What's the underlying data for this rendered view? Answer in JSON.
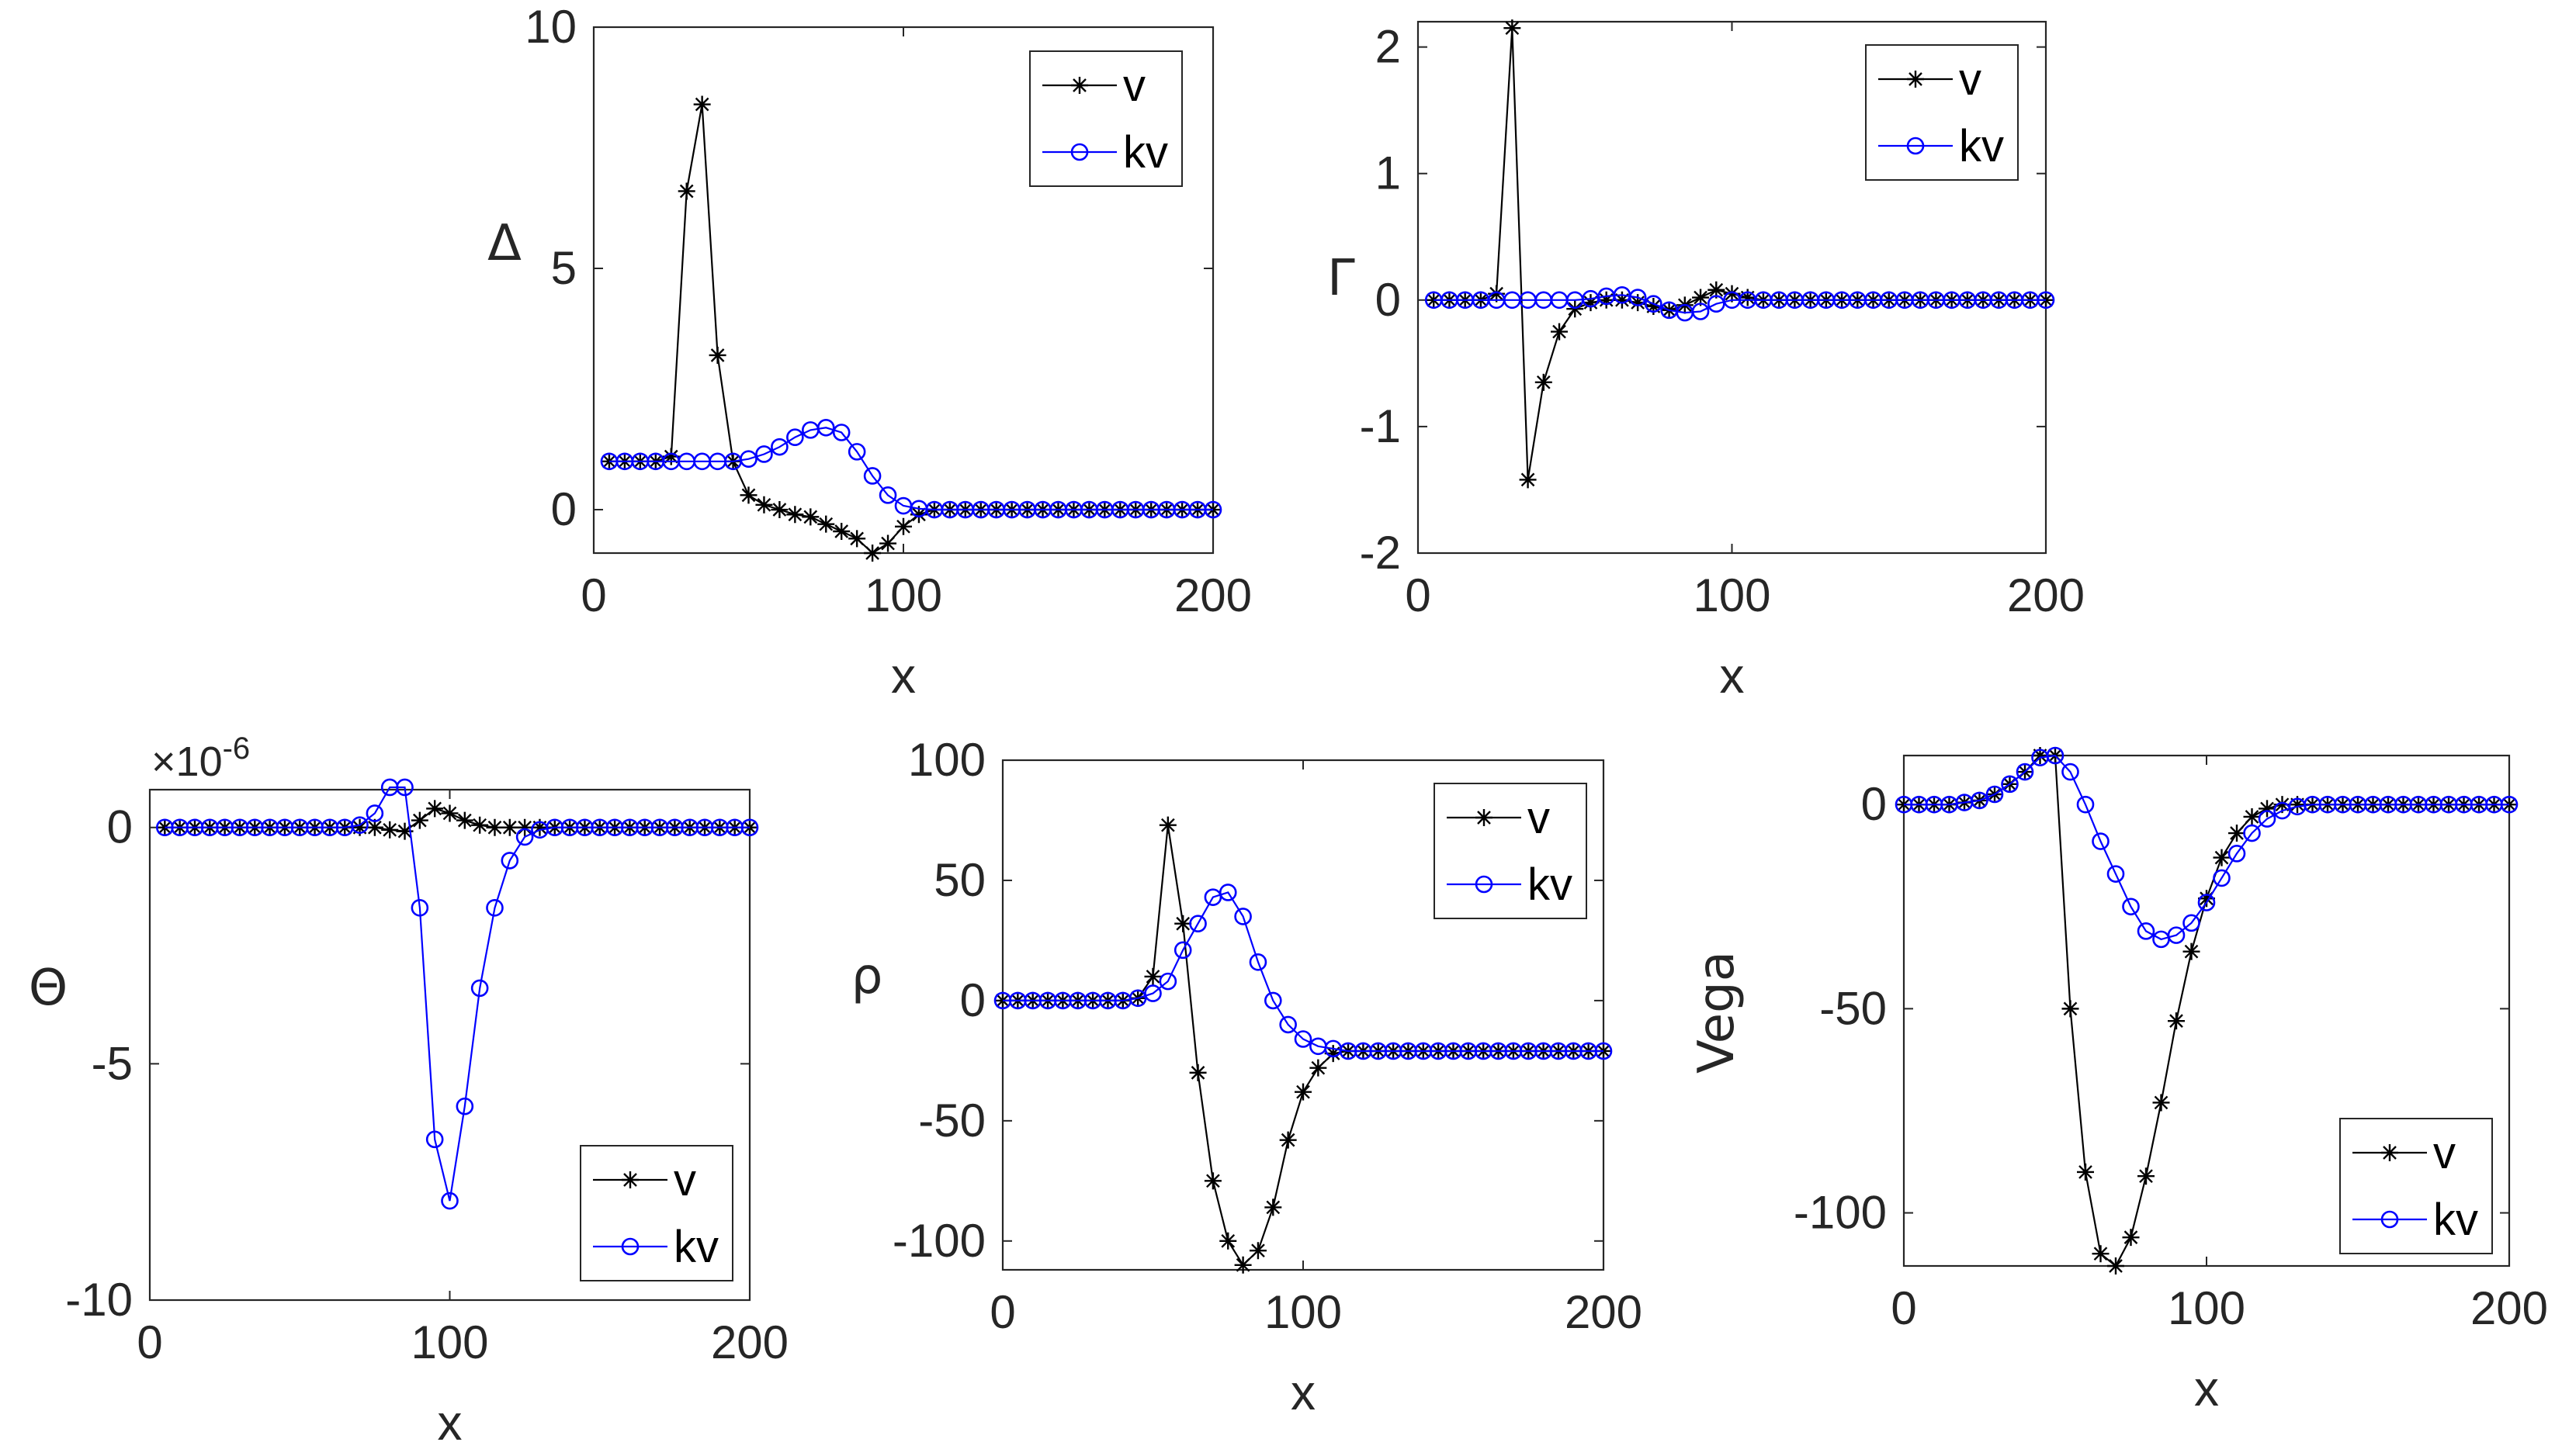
{
  "figure": {
    "description_free": true
  },
  "colors": {
    "v": "#000000",
    "kv": "#0000ff",
    "axis": "#262626"
  },
  "chart_data": [
    {
      "id": "delta",
      "type": "line",
      "ylabel": "Δ",
      "xlabel": "x",
      "xlim": [
        0,
        200
      ],
      "ylim": [
        -0.9,
        10
      ],
      "xticks": [
        0,
        100,
        200
      ],
      "yticks": [
        0,
        5,
        10
      ],
      "xtick_labels": [
        "0",
        "100",
        "200"
      ],
      "ytick_labels": [
        "0",
        "5",
        "10"
      ],
      "multiplier": "",
      "legend": "top-right",
      "series": [
        {
          "name": "v",
          "marker": "star",
          "x": [
            5,
            10,
            15,
            20,
            25,
            30,
            35,
            40,
            45,
            50,
            55,
            60,
            65,
            70,
            75,
            80,
            85,
            90,
            95,
            100,
            105,
            110,
            115,
            120,
            125,
            130,
            135,
            140,
            145,
            150,
            155,
            160,
            165,
            170,
            175,
            180,
            185,
            190,
            195,
            200
          ],
          "y": [
            1,
            1,
            1,
            1,
            1.1,
            6.6,
            8.4,
            3.2,
            1,
            0.3,
            0.1,
            0,
            -0.1,
            -0.15,
            -0.3,
            -0.45,
            -0.6,
            -0.9,
            -0.7,
            -0.35,
            -0.1,
            0,
            0,
            0,
            0,
            0,
            0,
            0,
            0,
            0,
            0,
            0,
            0,
            0,
            0,
            0,
            0,
            0,
            0,
            0
          ]
        },
        {
          "name": "kv",
          "marker": "circle",
          "x": [
            5,
            10,
            15,
            20,
            25,
            30,
            35,
            40,
            45,
            50,
            55,
            60,
            65,
            70,
            75,
            80,
            85,
            90,
            95,
            100,
            105,
            110,
            115,
            120,
            125,
            130,
            135,
            140,
            145,
            150,
            155,
            160,
            165,
            170,
            175,
            180,
            185,
            190,
            195,
            200
          ],
          "y": [
            1,
            1,
            1,
            1,
            1,
            1,
            1,
            1,
            1,
            1.05,
            1.15,
            1.3,
            1.5,
            1.65,
            1.7,
            1.6,
            1.2,
            0.7,
            0.3,
            0.08,
            0.02,
            0,
            0,
            0,
            0,
            0,
            0,
            0,
            0,
            0,
            0,
            0,
            0,
            0,
            0,
            0,
            0,
            0,
            0,
            0
          ]
        }
      ]
    },
    {
      "id": "gamma",
      "type": "line",
      "ylabel": "Γ",
      "xlabel": "x",
      "xlim": [
        0,
        200
      ],
      "ylim": [
        -2,
        2.2
      ],
      "xticks": [
        0,
        100,
        200
      ],
      "yticks": [
        -2,
        -1,
        0,
        1,
        2
      ],
      "xtick_labels": [
        "0",
        "100",
        "200"
      ],
      "ytick_labels": [
        "-2",
        "-1",
        "0",
        "1",
        "2"
      ],
      "multiplier": "",
      "legend": "top-right",
      "series": [
        {
          "name": "v",
          "marker": "star",
          "x": [
            5,
            10,
            15,
            20,
            25,
            30,
            35,
            40,
            45,
            50,
            55,
            60,
            65,
            70,
            75,
            80,
            85,
            90,
            95,
            100,
            105,
            110,
            115,
            120,
            125,
            130,
            135,
            140,
            145,
            150,
            155,
            160,
            165,
            170,
            175,
            180,
            185,
            190,
            195,
            200
          ],
          "y": [
            0,
            0,
            0,
            0,
            0.05,
            2.15,
            -1.42,
            -0.65,
            -0.25,
            -0.07,
            -0.02,
            0,
            0,
            -0.02,
            -0.05,
            -0.08,
            -0.04,
            0.02,
            0.08,
            0.05,
            0.02,
            0,
            0,
            0,
            0,
            0,
            0,
            0,
            0,
            0,
            0,
            0,
            0,
            0,
            0,
            0,
            0,
            0,
            0,
            0
          ]
        },
        {
          "name": "kv",
          "marker": "circle",
          "x": [
            5,
            10,
            15,
            20,
            25,
            30,
            35,
            40,
            45,
            50,
            55,
            60,
            65,
            70,
            75,
            80,
            85,
            90,
            95,
            100,
            105,
            110,
            115,
            120,
            125,
            130,
            135,
            140,
            145,
            150,
            155,
            160,
            165,
            170,
            175,
            180,
            185,
            190,
            195,
            200
          ],
          "y": [
            0,
            0,
            0,
            0,
            0,
            0,
            0,
            0,
            0,
            0,
            0.01,
            0.03,
            0.04,
            0.02,
            -0.03,
            -0.08,
            -0.1,
            -0.09,
            -0.03,
            0,
            0,
            0,
            0,
            0,
            0,
            0,
            0,
            0,
            0,
            0,
            0,
            0,
            0,
            0,
            0,
            0,
            0,
            0,
            0,
            0
          ]
        }
      ]
    },
    {
      "id": "theta",
      "type": "line",
      "ylabel": "Θ",
      "xlabel": "x",
      "xlim": [
        0,
        200
      ],
      "ylim": [
        -10,
        0.8
      ],
      "xticks": [
        0,
        100,
        200
      ],
      "yticks": [
        -10,
        -5,
        0
      ],
      "xtick_labels": [
        "0",
        "100",
        "200"
      ],
      "ytick_labels": [
        "-10",
        "-5",
        "0"
      ],
      "multiplier": "×10",
      "multiplier_exp": "-6",
      "legend": "bottom-right",
      "series": [
        {
          "name": "v",
          "marker": "star",
          "x": [
            5,
            10,
            15,
            20,
            25,
            30,
            35,
            40,
            45,
            50,
            55,
            60,
            65,
            70,
            75,
            80,
            85,
            90,
            95,
            100,
            105,
            110,
            115,
            120,
            125,
            130,
            135,
            140,
            145,
            150,
            155,
            160,
            165,
            170,
            175,
            180,
            185,
            190,
            195,
            200
          ],
          "y": [
            0,
            0,
            0,
            0,
            0,
            0,
            0,
            0,
            0,
            0,
            0,
            0,
            0,
            0,
            0,
            -0.05,
            -0.08,
            0.15,
            0.4,
            0.3,
            0.15,
            0.05,
            0,
            0,
            0,
            0,
            0,
            0,
            0,
            0,
            0,
            0,
            0,
            0,
            0,
            0,
            0,
            0,
            0,
            0
          ]
        },
        {
          "name": "kv",
          "marker": "circle",
          "x": [
            5,
            10,
            15,
            20,
            25,
            30,
            35,
            40,
            45,
            50,
            55,
            60,
            65,
            70,
            75,
            80,
            85,
            90,
            95,
            100,
            105,
            110,
            115,
            120,
            125,
            130,
            135,
            140,
            145,
            150,
            155,
            160,
            165,
            170,
            175,
            180,
            185,
            190,
            195,
            200
          ],
          "y": [
            0,
            0,
            0,
            0,
            0,
            0,
            0,
            0,
            0,
            0,
            0,
            0,
            0,
            0.05,
            0.3,
            0.85,
            0.85,
            -1.7,
            -6.6,
            -7.9,
            -5.9,
            -3.4,
            -1.7,
            -0.7,
            -0.2,
            -0.05,
            0,
            0,
            0,
            0,
            0,
            0,
            0,
            0,
            0,
            0,
            0,
            0,
            0,
            0
          ]
        }
      ]
    },
    {
      "id": "rho",
      "type": "line",
      "ylabel": "ρ",
      "xlabel": "x",
      "xlim": [
        0,
        200
      ],
      "ylim": [
        -112,
        100
      ],
      "xticks": [
        0,
        100,
        200
      ],
      "yticks": [
        -100,
        -50,
        0,
        50,
        100
      ],
      "xtick_labels": [
        "0",
        "100",
        "200"
      ],
      "ytick_labels": [
        "-100",
        "-50",
        "0",
        "50",
        "100"
      ],
      "multiplier": "",
      "legend": "top-right",
      "series": [
        {
          "name": "v",
          "marker": "star",
          "x": [
            0,
            5,
            10,
            15,
            20,
            25,
            30,
            35,
            40,
            45,
            50,
            55,
            60,
            65,
            70,
            75,
            80,
            85,
            90,
            95,
            100,
            105,
            110,
            115,
            120,
            125,
            130,
            135,
            140,
            145,
            150,
            155,
            160,
            165,
            170,
            175,
            180,
            185,
            190,
            195,
            200
          ],
          "y": [
            0,
            0,
            0,
            0,
            0,
            0,
            0,
            0,
            0,
            1,
            10,
            73,
            32,
            -30,
            -75,
            -100,
            -110,
            -104,
            -86,
            -58,
            -38,
            -28,
            -22,
            -21,
            -21,
            -21,
            -21,
            -21,
            -21,
            -21,
            -21,
            -21,
            -21,
            -21,
            -21,
            -21,
            -21,
            -21,
            -21,
            -21,
            -21
          ]
        },
        {
          "name": "kv",
          "marker": "circle",
          "x": [
            0,
            5,
            10,
            15,
            20,
            25,
            30,
            35,
            40,
            45,
            50,
            55,
            60,
            65,
            70,
            75,
            80,
            85,
            90,
            95,
            100,
            105,
            110,
            115,
            120,
            125,
            130,
            135,
            140,
            145,
            150,
            155,
            160,
            165,
            170,
            175,
            180,
            185,
            190,
            195,
            200
          ],
          "y": [
            0,
            0,
            0,
            0,
            0,
            0,
            0,
            0,
            0,
            1,
            3,
            8,
            21,
            32,
            43,
            45,
            35,
            16,
            0,
            -10,
            -16,
            -19,
            -20,
            -21,
            -21,
            -21,
            -21,
            -21,
            -21,
            -21,
            -21,
            -21,
            -21,
            -21,
            -21,
            -21,
            -21,
            -21,
            -21,
            -21,
            -21
          ]
        }
      ]
    },
    {
      "id": "vega",
      "type": "line",
      "ylabel": "Vega",
      "xlabel": "x",
      "xlim": [
        0,
        200
      ],
      "ylim": [
        -113,
        12
      ],
      "xticks": [
        0,
        100,
        200
      ],
      "yticks": [
        -100,
        -50,
        0
      ],
      "xtick_labels": [
        "0",
        "100",
        "200"
      ],
      "ytick_labels": [
        "-100",
        "-50",
        "0"
      ],
      "multiplier": "",
      "legend": "bottom-right",
      "series": [
        {
          "name": "v",
          "marker": "star",
          "x": [
            0,
            5,
            10,
            15,
            20,
            25,
            30,
            35,
            40,
            45,
            50,
            55,
            60,
            65,
            70,
            75,
            80,
            85,
            90,
            95,
            100,
            105,
            110,
            115,
            120,
            125,
            130,
            135,
            140,
            145,
            150,
            155,
            160,
            165,
            170,
            175,
            180,
            185,
            190,
            195,
            200
          ],
          "y": [
            0,
            0,
            0,
            0,
            0.5,
            1,
            2.5,
            5,
            8,
            12,
            12,
            -50,
            -90,
            -110,
            -113,
            -106,
            -91,
            -73,
            -53,
            -36,
            -23,
            -13,
            -7,
            -3,
            -1,
            0,
            0,
            0,
            0,
            0,
            0,
            0,
            0,
            0,
            0,
            0,
            0,
            0,
            0,
            0,
            0
          ]
        },
        {
          "name": "kv",
          "marker": "circle",
          "x": [
            0,
            5,
            10,
            15,
            20,
            25,
            30,
            35,
            40,
            45,
            50,
            55,
            60,
            65,
            70,
            75,
            80,
            85,
            90,
            95,
            100,
            105,
            110,
            115,
            120,
            125,
            130,
            135,
            140,
            145,
            150,
            155,
            160,
            165,
            170,
            175,
            180,
            185,
            190,
            195,
            200
          ],
          "y": [
            0,
            0,
            0,
            0,
            0.5,
            1,
            2.5,
            5,
            8,
            11.5,
            12,
            8,
            0,
            -9,
            -17,
            -25,
            -31,
            -33,
            -32,
            -29,
            -24,
            -18,
            -12,
            -7,
            -3.5,
            -1.5,
            -0.5,
            0,
            0,
            0,
            0,
            0,
            0,
            0,
            0,
            0,
            0,
            0,
            0,
            0,
            0
          ]
        }
      ]
    }
  ]
}
